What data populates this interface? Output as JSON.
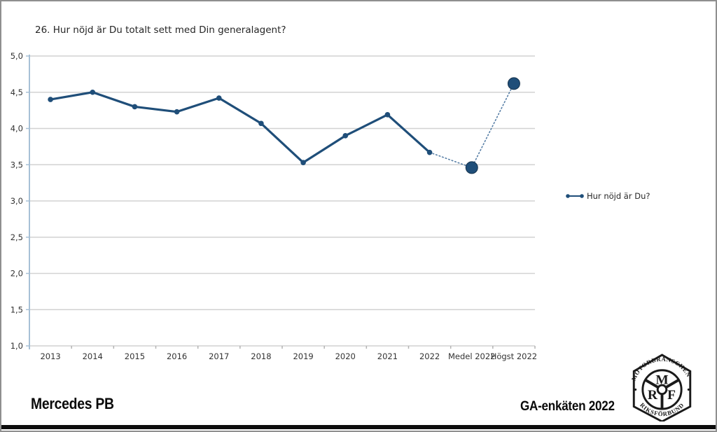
{
  "page": {
    "footer_left": "Mercedes PB",
    "footer_right": "GA-enkäten 2022"
  },
  "legend": {
    "label": "Hur nöjd är Du?"
  },
  "logo": {
    "top_text": "MOTORBRANSCHENS",
    "bottom_text": "RIKSFÖRBUND",
    "letters": [
      "M",
      "R",
      "F"
    ]
  },
  "colors": {
    "line": "#1f4e79",
    "dotted_line": "#587fa6",
    "grid": "#d2d2d2",
    "axis_blue": "#a7c0d6",
    "tick_gray": "#b3b3b3",
    "text": "#333333"
  },
  "chart_data": {
    "type": "line",
    "title": "26. Hur nöjd är Du totalt sett med Din generalagent?",
    "categories": [
      "2013",
      "2014",
      "2015",
      "2016",
      "2017",
      "2018",
      "2019",
      "2020",
      "2021",
      "2022",
      "Medel 2022",
      "Högst 2022"
    ],
    "series": [
      {
        "name": "Hur nöjd är Du?",
        "values": [
          4.4,
          4.5,
          4.3,
          4.23,
          4.42,
          4.07,
          3.53,
          3.9,
          4.19,
          3.67,
          3.46,
          4.62
        ],
        "solid_through_index": 9,
        "summary_indices": [
          10,
          11
        ]
      }
    ],
    "ylim": [
      1.0,
      5.0
    ],
    "ytick_step": 0.5,
    "ytick_labels": [
      "1,0",
      "1,5",
      "2,0",
      "2,5",
      "3,0",
      "3,5",
      "4,0",
      "4,5",
      "5,0"
    ],
    "grid": true,
    "legend_position": "right"
  }
}
